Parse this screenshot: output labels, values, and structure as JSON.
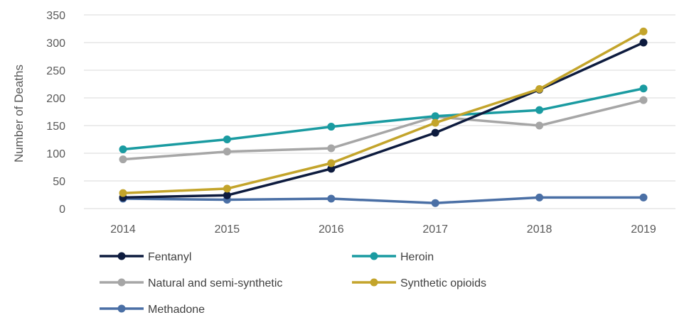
{
  "chart_data": {
    "type": "line",
    "title": "",
    "xlabel": "",
    "ylabel": "Number of Deaths",
    "x": [
      "2014",
      "2015",
      "2016",
      "2017",
      "2018",
      "2019"
    ],
    "ylim": [
      0,
      350
    ],
    "yticks": [
      0,
      50,
      100,
      150,
      200,
      250,
      300,
      350
    ],
    "grid": "horizontal",
    "legend_position": "bottom",
    "series": [
      {
        "name": "Fentanyl",
        "color": "#0d1b3e",
        "values": [
          20,
          24,
          72,
          137,
          215,
          300
        ]
      },
      {
        "name": "Heroin",
        "color": "#1a9ba1",
        "values": [
          107,
          125,
          148,
          167,
          178,
          217
        ]
      },
      {
        "name": "Natural and semi-synthetic",
        "color": "#a6a6a6",
        "values": [
          89,
          103,
          109,
          166,
          150,
          196
        ]
      },
      {
        "name": "Synthetic opioids",
        "color": "#c3a42b",
        "values": [
          28,
          36,
          82,
          155,
          216,
          320
        ]
      },
      {
        "name": "Methadone",
        "color": "#4a6fa5",
        "values": [
          18,
          16,
          18,
          10,
          20,
          20
        ]
      }
    ]
  }
}
